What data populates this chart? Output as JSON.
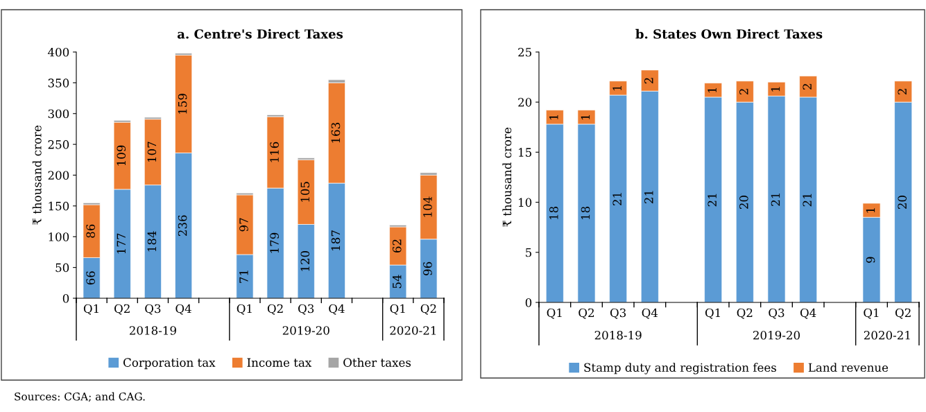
{
  "chart_data": [
    {
      "type": "bar",
      "title": "a. Centre's Direct Taxes",
      "ylabel": "₹ thousand crore",
      "stacked": true,
      "categories": [
        "Q1",
        "Q2",
        "Q3",
        "Q4",
        null,
        "Q1",
        "Q2",
        "Q3",
        "Q4",
        null,
        "Q1",
        "Q2"
      ],
      "series": [
        {
          "name": "Corporation tax",
          "color": "#5b9bd5",
          "values": [
            66,
            177,
            184,
            236,
            null,
            71,
            179,
            120,
            187,
            null,
            54,
            96
          ],
          "value_labels": [
            "66",
            "177",
            "184",
            "236",
            null,
            "71",
            "179",
            "120",
            "187",
            null,
            "54",
            "96"
          ]
        },
        {
          "name": "Income tax",
          "color": "#ed7d31",
          "values": [
            86,
            109,
            107,
            159,
            null,
            97,
            116,
            105,
            163,
            null,
            62,
            104
          ],
          "value_labels": [
            "86",
            "109",
            "107",
            "159",
            null,
            "97",
            "116",
            "105",
            "163",
            null,
            "62",
            "104"
          ]
        },
        {
          "name": "Other taxes",
          "color": "#a5a5a5",
          "values": [
            3,
            3,
            3,
            3,
            null,
            3,
            3,
            3,
            5,
            null,
            3,
            4
          ]
        }
      ],
      "ylim": [
        0,
        400
      ],
      "yticks": [
        0,
        50,
        100,
        150,
        200,
        250,
        300,
        350,
        400
      ],
      "grid": false,
      "legend": "bottom",
      "annotations": [
        "2018-19",
        "2019-20",
        "2020-21",
        "Sources: CGA; and CAG."
      ]
    },
    {
      "type": "bar",
      "title": "b. States Own Direct Taxes",
      "ylabel": "₹ thousand crore",
      "stacked": true,
      "categories": [
        "Q1",
        "Q2",
        "Q3",
        "Q4",
        null,
        "Q1",
        "Q2",
        "Q3",
        "Q4",
        null,
        "Q1",
        "Q2"
      ],
      "series": [
        {
          "name": "Stamp duty and registration fees",
          "color": "#5b9bd5",
          "values": [
            17.8,
            17.8,
            20.7,
            21.1,
            null,
            20.5,
            20.0,
            20.6,
            20.5,
            null,
            8.5,
            20.0
          ],
          "value_labels": [
            "18",
            "18",
            "21",
            "21",
            null,
            "21",
            "20",
            "21",
            "21",
            null,
            "9",
            "20"
          ]
        },
        {
          "name": "Land revenue",
          "color": "#ed7d31",
          "values": [
            1.4,
            1.4,
            1.4,
            2.1,
            null,
            1.4,
            2.1,
            1.4,
            2.1,
            null,
            1.4,
            2.1
          ],
          "value_labels": [
            "1",
            "1",
            "1",
            "2",
            null,
            "1",
            "2",
            "1",
            "2",
            null,
            "1",
            "2"
          ]
        }
      ],
      "ylim": [
        0,
        25
      ],
      "yticks": [
        0,
        5,
        10,
        15,
        20,
        25
      ],
      "grid": false,
      "legend": "bottom",
      "annotations": [
        "2018-19",
        "2019-20",
        "2020-21"
      ]
    }
  ]
}
